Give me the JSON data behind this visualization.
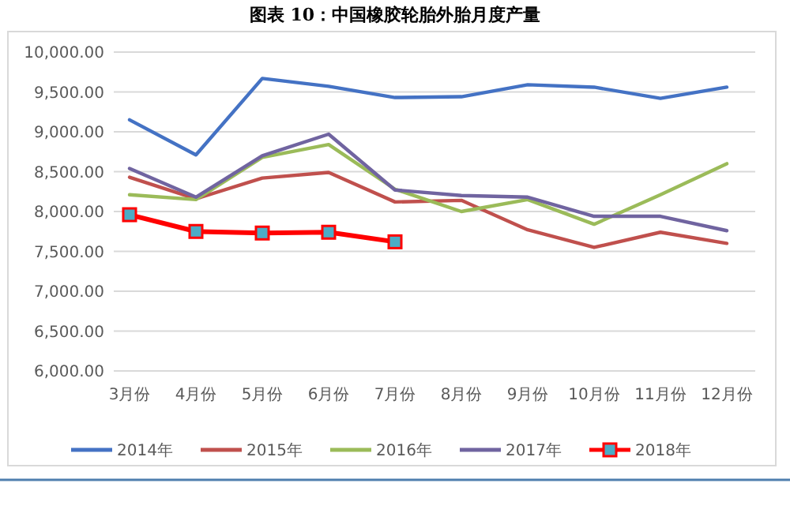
{
  "chart_data": {
    "type": "line",
    "title": "图表 10：中国橡胶轮胎外胎月度产量",
    "categories": [
      "3月份",
      "4月份",
      "5月份",
      "6月份",
      "7月份",
      "8月份",
      "9月份",
      "10月份",
      "11月份",
      "12月份"
    ],
    "series": [
      {
        "name": "2014年",
        "color": "#4472c4",
        "values": [
          9150,
          8710,
          9670,
          9570,
          9430,
          9440,
          9590,
          9560,
          9420,
          9560
        ]
      },
      {
        "name": "2015年",
        "color": "#c0504d",
        "values": [
          8430,
          8160,
          8420,
          8490,
          8120,
          8140,
          7770,
          7550,
          7740,
          7600
        ]
      },
      {
        "name": "2016年",
        "color": "#9bbb59",
        "values": [
          8210,
          8150,
          8680,
          8840,
          8280,
          8000,
          8150,
          7840,
          8210,
          8600
        ]
      },
      {
        "name": "2017年",
        "color": "#7064a0",
        "values": [
          8540,
          8180,
          8700,
          8970,
          8270,
          8200,
          8180,
          7940,
          7940,
          7760
        ]
      },
      {
        "name": "2018年",
        "color": "#ff0000",
        "marker": "square",
        "values": [
          7960,
          7750,
          7730,
          7740,
          7620,
          null,
          null,
          null,
          null,
          null
        ]
      }
    ],
    "ylim": [
      6000,
      10000
    ],
    "yticks": [
      {
        "value": 6000,
        "label": "6,000.00"
      },
      {
        "value": 6500,
        "label": "6,500.00"
      },
      {
        "value": 7000,
        "label": "7,000.00"
      },
      {
        "value": 7500,
        "label": "7,500.00"
      },
      {
        "value": 8000,
        "label": "8,000.00"
      },
      {
        "value": 8500,
        "label": "8,500.00"
      },
      {
        "value": 9000,
        "label": "9,000.00"
      },
      {
        "value": 9500,
        "label": "9,500.00"
      },
      {
        "value": 10000,
        "label": "10,000.00"
      }
    ],
    "grid": "y",
    "legend": "bottom",
    "marker": "none",
    "line_style": "solid"
  }
}
